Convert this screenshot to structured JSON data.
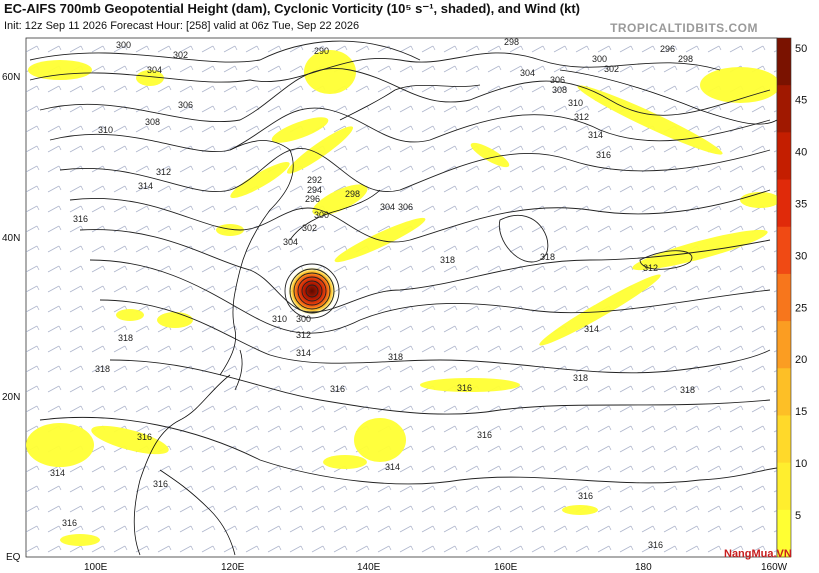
{
  "header": {
    "title": "EC-AIFS 700mb Geopotential Height (dam), Cyclonic Vorticity (10⁵ s⁻¹, shaded), and Wind (kt)",
    "subtitle": "Init: 12z Sep 11 2026   Forecast Hour: [258]   valid at 06z Tue, Sep 22 2026",
    "brand": "TROPICALTIDBITS.COM"
  },
  "axes": {
    "lat_labels": [
      "60N",
      "40N",
      "20N",
      "EQ"
    ],
    "lon_labels": [
      "100E",
      "120E",
      "140E",
      "160E",
      "180",
      "160W"
    ]
  },
  "colorbar": {
    "ticks": [
      "50",
      "45",
      "40",
      "35",
      "30",
      "25",
      "20",
      "15",
      "10",
      "5"
    ],
    "colors": [
      "#7a1200",
      "#a01800",
      "#c41e00",
      "#e02a0a",
      "#f04a14",
      "#f7761c",
      "#fb9d22",
      "#fdbf26",
      "#ffd92a",
      "#ffee2e",
      "#ffff33"
    ]
  },
  "contours": {
    "labels": [
      "300",
      "302",
      "304",
      "306",
      "308",
      "310",
      "312",
      "314",
      "316",
      "318",
      "290",
      "292",
      "294",
      "296",
      "298"
    ]
  },
  "watermark": "NangMua.VN"
}
